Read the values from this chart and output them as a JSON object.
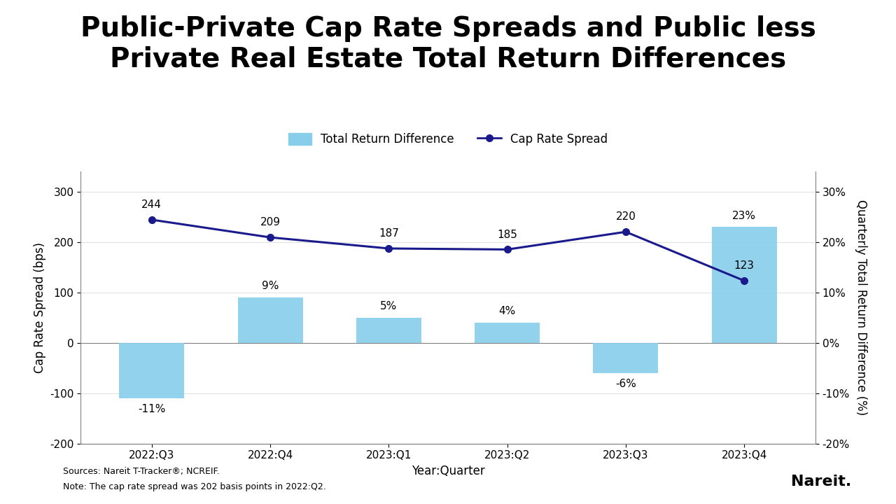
{
  "title": "Public-Private Cap Rate Spreads and Public less\nPrivate Real Estate Total Return Differences",
  "categories": [
    "2022:Q3",
    "2022:Q4",
    "2023:Q1",
    "2023:Q2",
    "2023:Q3",
    "2023:Q4"
  ],
  "bar_values_bps": [
    -110,
    90,
    50,
    40,
    -60,
    230
  ],
  "cap_rate_spread": [
    244,
    209,
    187,
    185,
    220,
    123
  ],
  "bar_color": "#87CEEB",
  "line_color": "#1a1a8c",
  "bar_label_pcts": [
    "-11%",
    "9%",
    "5%",
    "4%",
    "-6%",
    "23%"
  ],
  "line_labels": [
    "244",
    "209",
    "187",
    "185",
    "220",
    "123"
  ],
  "xlabel": "Year:Quarter",
  "ylabel_left": "Cap Rate Spread (bps)",
  "ylabel_right": "Quarterly Total Return Difference (%)",
  "legend_bar": "Total Return Difference",
  "legend_line": "Cap Rate Spread",
  "ylim_left": [
    -200,
    340
  ],
  "ylim_right": [
    -20,
    34
  ],
  "yticks_left": [
    -200,
    -100,
    0,
    100,
    200,
    300
  ],
  "yticks_right": [
    -20,
    -10,
    0,
    10,
    20,
    30
  ],
  "ytick_labels_right": [
    "-20%",
    "-10%",
    "0%",
    "10%",
    "20%",
    "30%"
  ],
  "footnote1": "Sources: Nareit T-Tracker®; NCREIF.",
  "footnote2": "Note: The cap rate spread was 202 basis points in 2022:Q2.",
  "nareit_text": "Nareit.",
  "background_color": "#ffffff",
  "title_fontsize": 28,
  "axis_label_fontsize": 12,
  "tick_fontsize": 11,
  "annotation_fontsize": 11,
  "legend_fontsize": 12,
  "footnote_fontsize": 9
}
